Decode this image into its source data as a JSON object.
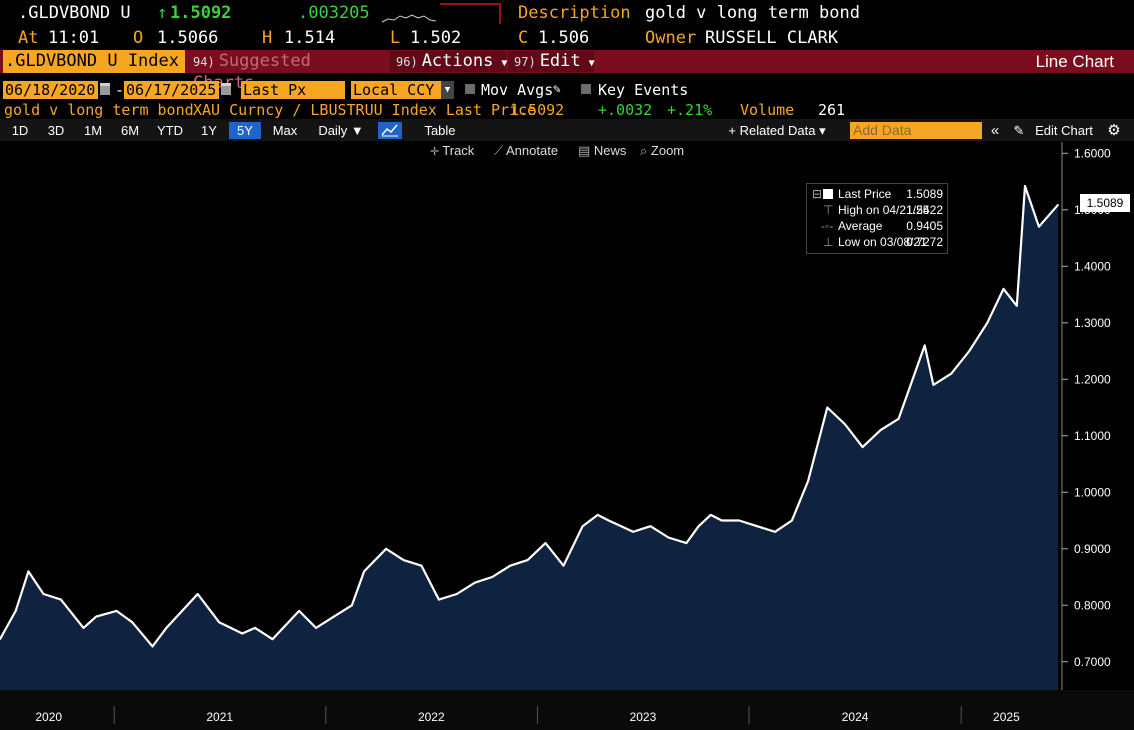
{
  "header": {
    "ticker": ".GLDVBOND U",
    "last_arrow": "↑",
    "last": "1.5092",
    "change": ".003205",
    "description_label": "Description",
    "description": "gold v long term bond",
    "at_label": "At",
    "time": "11:01",
    "open_label": "O",
    "open": "1.5066",
    "high_label": "H",
    "high": "1.514",
    "low_label": "L",
    "low": "1.502",
    "close_label": "C",
    "close": "1.506",
    "owner_label": "Owner",
    "owner": "RUSSELL CLARK"
  },
  "menubar": {
    "index": ".GLDVBOND U Index",
    "suggested_num": "94)",
    "suggested": "Suggested Charts",
    "actions_num": "96)",
    "actions": "Actions",
    "edit_num": "97)",
    "edit": "Edit",
    "chart_type": "Line Chart"
  },
  "controls": {
    "start_date": "06/18/2020",
    "date_sep": "-",
    "end_date": "06/17/2025",
    "field": "Last Px",
    "currency": "Local CCY",
    "mov_avgs": "Mov Avgs",
    "key_events": "Key Events"
  },
  "info": {
    "name": "gold v long term bond",
    "formula": "XAU Curncy / LBUSTRUU Index Last Price",
    "price": "1.5092",
    "net_change": "+.0032",
    "pct_change": "+.21%",
    "volume_label": "Volume",
    "volume": "261"
  },
  "toolbar": {
    "ranges": [
      "1D",
      "3D",
      "1M",
      "6M",
      "YTD",
      "1Y",
      "5Y",
      "Max"
    ],
    "selected_range": "5Y",
    "frequency": "Daily ▼",
    "table": "Table",
    "related": "+ Related Data ▾",
    "add_placeholder": "Add Data",
    "collapse": "«",
    "edit_chart": "Edit Chart",
    "settings": "⚙"
  },
  "tools": {
    "track": "Track",
    "annotate": "Annotate",
    "news": "News",
    "zoom": "Zoom"
  },
  "legend": {
    "last_label": "Last Price",
    "last_value": "1.5089",
    "high_label": "High on 04/21/25",
    "high_value": "1.5422",
    "avg_label": "Average",
    "avg_value": "0.9405",
    "low_label": "Low on 03/08/21",
    "low_value": "0.7272"
  },
  "last_price_tag": "1.5089",
  "colors": {
    "orange": "#f5a623",
    "green": "#3ad13a",
    "menu_red": "#7a0e1e",
    "area_fill": "#0f2340",
    "line": "#ffffff",
    "selected_tab": "#1f64c8"
  },
  "chart_data": {
    "type": "area",
    "title": "gold v long term bond",
    "ylim": [
      0.65,
      1.62
    ],
    "y_ticks": [
      "0.7000",
      "0.8000",
      "0.9000",
      "1.0000",
      "1.1000",
      "1.2000",
      "1.3000",
      "1.4000",
      "1.5000",
      "1.6000"
    ],
    "x_labels": [
      "2020",
      "2021",
      "2022",
      "2023",
      "2024",
      "2025"
    ],
    "grid": false,
    "x_range": [
      "2020-06-18",
      "2025-06-17"
    ],
    "series": [
      {
        "x": [
          "2020-06-18",
          "2020-07-15",
          "2020-08-06",
          "2020-09-01",
          "2020-10-01",
          "2020-11-09",
          "2020-12-01",
          "2021-01-05",
          "2021-02-01",
          "2021-03-08",
          "2021-04-01",
          "2021-05-25",
          "2021-07-01",
          "2021-08-10",
          "2021-09-01",
          "2021-10-01",
          "2021-11-16",
          "2021-12-15",
          "2022-01-15",
          "2022-02-15",
          "2022-03-08",
          "2022-04-15",
          "2022-05-15",
          "2022-06-15",
          "2022-07-15",
          "2022-08-15",
          "2022-09-15",
          "2022-10-15",
          "2022-11-15",
          "2022-12-15",
          "2023-01-15",
          "2023-02-15",
          "2023-03-20",
          "2023-04-15",
          "2023-05-04",
          "2023-06-15",
          "2023-07-15",
          "2023-08-15",
          "2023-09-15",
          "2023-10-06",
          "2023-10-27",
          "2023-11-15",
          "2023-12-15",
          "2024-01-15",
          "2024-02-15",
          "2024-03-15",
          "2024-04-12",
          "2024-05-15",
          "2024-06-15",
          "2024-07-15",
          "2024-08-15",
          "2024-09-15",
          "2024-10-30",
          "2024-11-14",
          "2024-12-15",
          "2025-01-15",
          "2025-02-15",
          "2025-03-15",
          "2025-04-07",
          "2025-04-21",
          "2025-05-15",
          "2025-06-17"
        ],
        "values": [
          0.74,
          0.79,
          0.86,
          0.82,
          0.81,
          0.76,
          0.78,
          0.79,
          0.77,
          0.7272,
          0.76,
          0.82,
          0.77,
          0.75,
          0.76,
          0.74,
          0.79,
          0.76,
          0.78,
          0.8,
          0.86,
          0.9,
          0.88,
          0.87,
          0.81,
          0.82,
          0.84,
          0.85,
          0.87,
          0.88,
          0.91,
          0.87,
          0.94,
          0.96,
          0.95,
          0.93,
          0.94,
          0.92,
          0.91,
          0.94,
          0.96,
          0.95,
          0.95,
          0.94,
          0.93,
          0.95,
          1.02,
          1.15,
          1.12,
          1.08,
          1.11,
          1.13,
          1.26,
          1.19,
          1.21,
          1.25,
          1.3,
          1.36,
          1.33,
          1.5422,
          1.47,
          1.5089
        ]
      }
    ]
  }
}
